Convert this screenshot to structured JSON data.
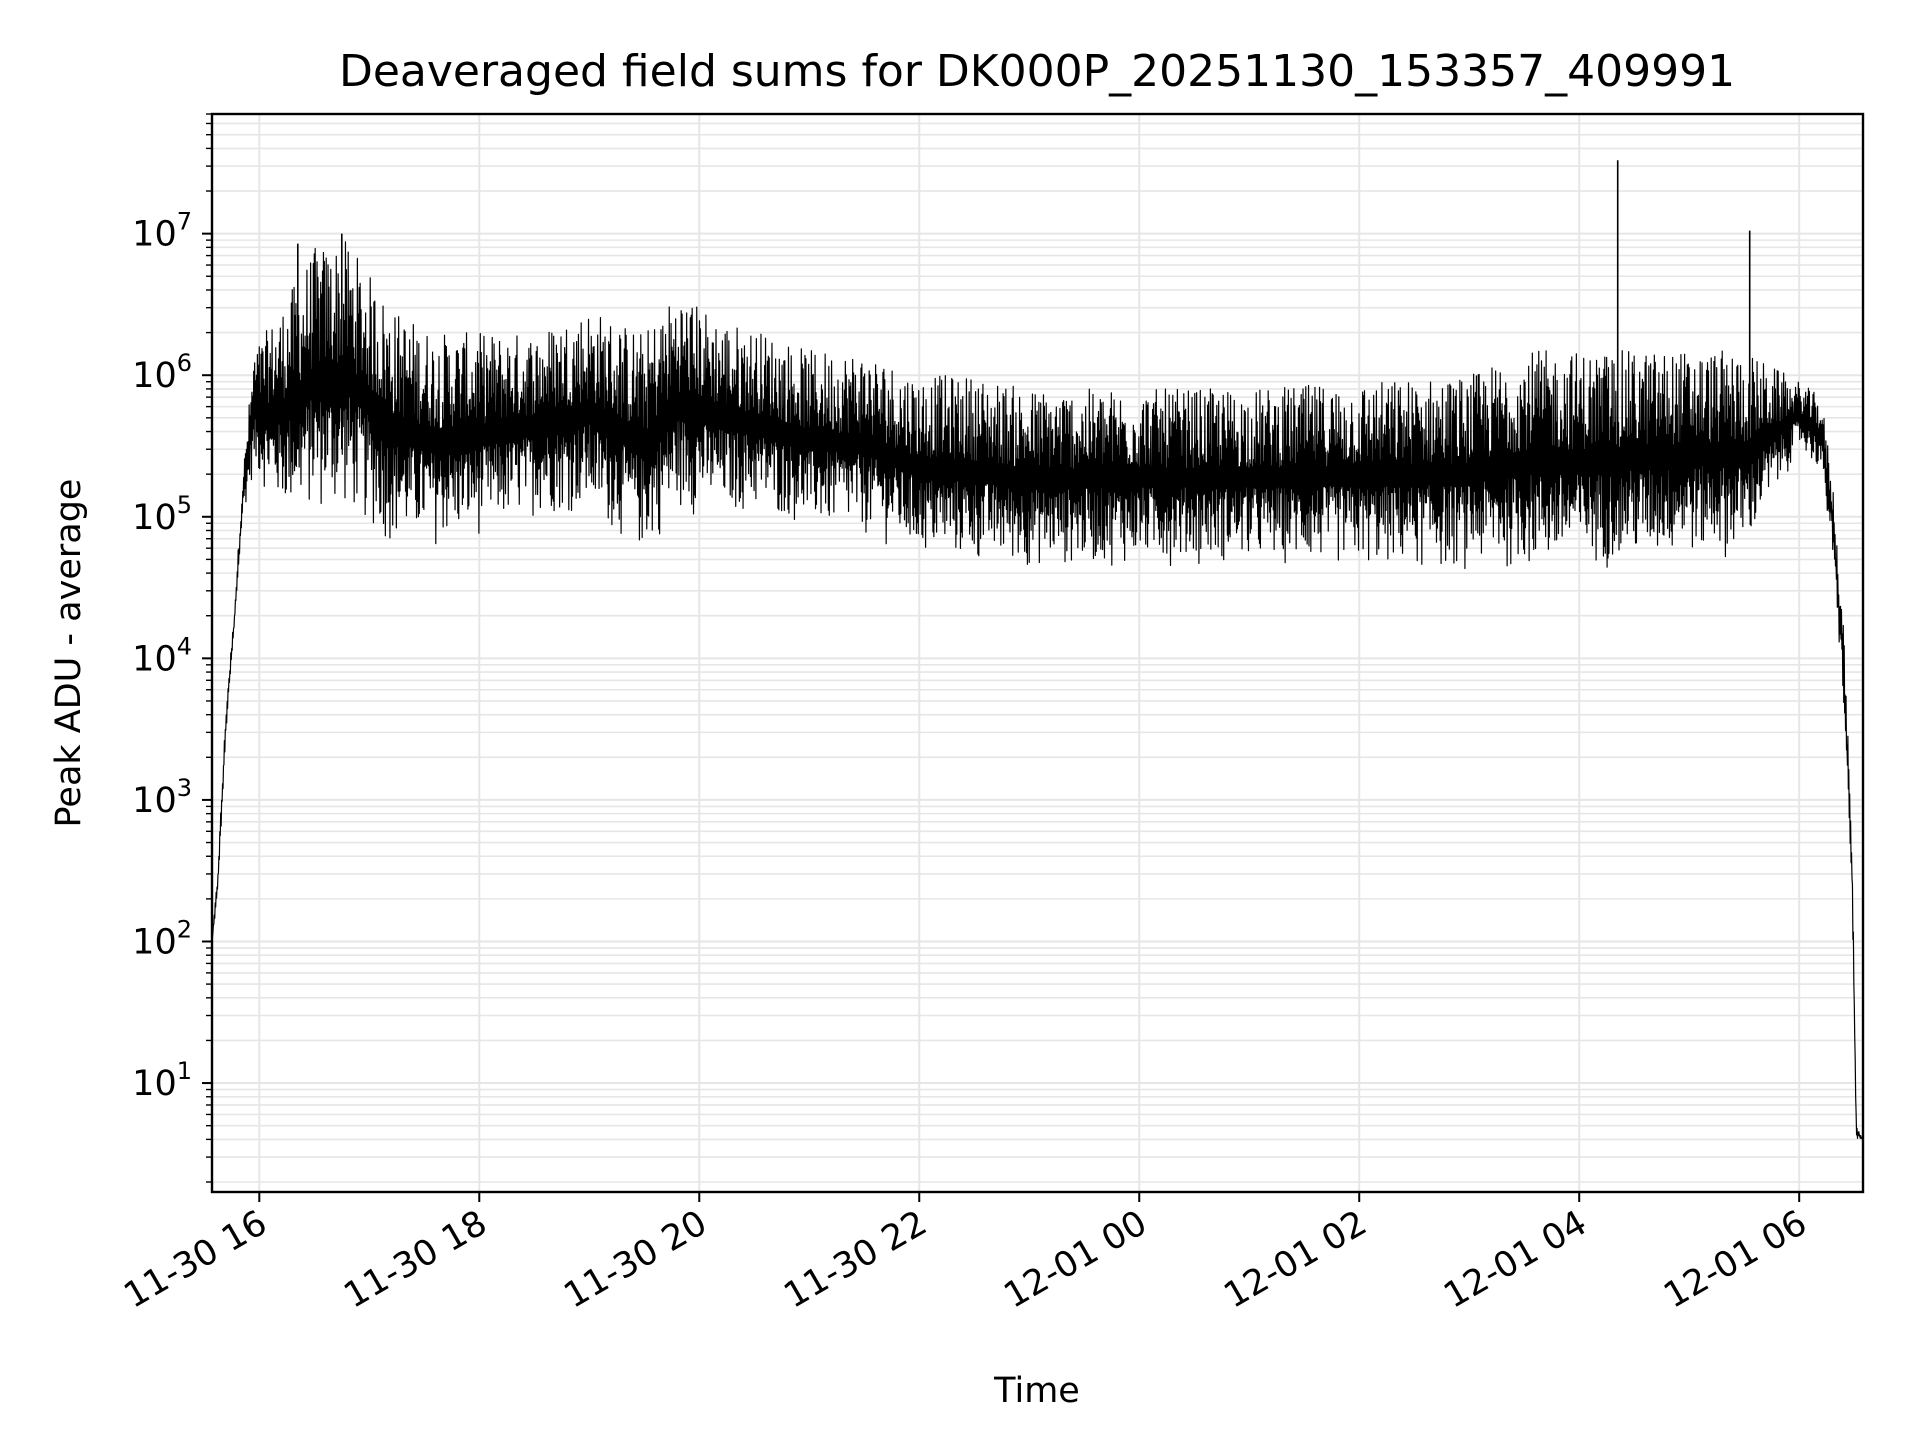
{
  "chart_data": {
    "type": "line",
    "title": "Deaveraged field sums for DK000P_20251130_153357_409991",
    "xlabel": "Time",
    "ylabel": "Peak ADU - average",
    "yscale": "log",
    "ylim": [
      1.7,
      70000000
    ],
    "xlim_hours": [
      15.57,
      30.58
    ],
    "grid": true,
    "x_ticks": [
      {
        "hour": 16,
        "label": "11-30 16"
      },
      {
        "hour": 18,
        "label": "11-30 18"
      },
      {
        "hour": 20,
        "label": "11-30 20"
      },
      {
        "hour": 22,
        "label": "11-30 22"
      },
      {
        "hour": 24,
        "label": "12-01 00"
      },
      {
        "hour": 26,
        "label": "12-01 02"
      },
      {
        "hour": 28,
        "label": "12-01 04"
      },
      {
        "hour": 30,
        "label": "12-01 06"
      }
    ],
    "y_ticks": [
      {
        "exp": 1,
        "base": "10",
        "power": "1"
      },
      {
        "exp": 2,
        "base": "10",
        "power": "2"
      },
      {
        "exp": 3,
        "base": "10",
        "power": "3"
      },
      {
        "exp": 4,
        "base": "10",
        "power": "4"
      },
      {
        "exp": 5,
        "base": "10",
        "power": "5"
      },
      {
        "exp": 6,
        "base": "10",
        "power": "6"
      },
      {
        "exp": 7,
        "base": "10",
        "power": "7"
      }
    ],
    "series": [
      {
        "name": "peak_adu_minus_average",
        "color": "#000000",
        "envelope": [
          {
            "t": 15.57,
            "lo": 100,
            "hi": 100
          },
          {
            "t": 15.62,
            "lo": 200,
            "hi": 300
          },
          {
            "t": 15.7,
            "lo": 3000,
            "hi": 5000
          },
          {
            "t": 15.77,
            "lo": 15000,
            "hi": 20000
          },
          {
            "t": 15.85,
            "lo": 100000,
            "hi": 200000
          },
          {
            "t": 15.95,
            "lo": 200000,
            "hi": 1500000
          },
          {
            "t": 16.2,
            "lo": 100000,
            "hi": 3000000
          },
          {
            "t": 16.5,
            "lo": 100000,
            "hi": 8000000
          },
          {
            "t": 16.8,
            "lo": 100000,
            "hi": 9000000
          },
          {
            "t": 17.2,
            "lo": 60000,
            "hi": 3000000
          },
          {
            "t": 17.6,
            "lo": 60000,
            "hi": 2000000
          },
          {
            "t": 18.0,
            "lo": 70000,
            "hi": 2000000
          },
          {
            "t": 18.5,
            "lo": 100000,
            "hi": 2000000
          },
          {
            "t": 19.0,
            "lo": 100000,
            "hi": 3000000
          },
          {
            "t": 19.5,
            "lo": 50000,
            "hi": 2000000
          },
          {
            "t": 19.8,
            "lo": 100000,
            "hi": 4000000
          },
          {
            "t": 20.2,
            "lo": 100000,
            "hi": 2500000
          },
          {
            "t": 20.6,
            "lo": 100000,
            "hi": 2000000
          },
          {
            "t": 21.0,
            "lo": 80000,
            "hi": 1500000
          },
          {
            "t": 21.5,
            "lo": 70000,
            "hi": 1500000
          },
          {
            "t": 22.0,
            "lo": 50000,
            "hi": 1000000
          },
          {
            "t": 22.5,
            "lo": 45000,
            "hi": 1000000
          },
          {
            "t": 23.0,
            "lo": 42000,
            "hi": 800000
          },
          {
            "t": 24.0,
            "lo": 45000,
            "hi": 800000
          },
          {
            "t": 25.0,
            "lo": 45000,
            "hi": 800000
          },
          {
            "t": 26.0,
            "lo": 42000,
            "hi": 900000
          },
          {
            "t": 27.0,
            "lo": 40000,
            "hi": 1000000
          },
          {
            "t": 27.5,
            "lo": 40000,
            "hi": 1500000
          },
          {
            "t": 28.0,
            "lo": 40000,
            "hi": 1500000
          },
          {
            "t": 28.5,
            "lo": 45000,
            "hi": 1500000
          },
          {
            "t": 29.0,
            "lo": 50000,
            "hi": 1500000
          },
          {
            "t": 29.5,
            "lo": 50000,
            "hi": 1500000
          },
          {
            "t": 30.0,
            "lo": 300000,
            "hi": 900000
          },
          {
            "t": 30.2,
            "lo": 200000,
            "hi": 700000
          },
          {
            "t": 30.3,
            "lo": 50000,
            "hi": 200000
          },
          {
            "t": 30.4,
            "lo": 5000,
            "hi": 20000
          },
          {
            "t": 30.48,
            "lo": 200,
            "hi": 500
          },
          {
            "t": 30.52,
            "lo": 4,
            "hi": 5
          },
          {
            "t": 30.58,
            "lo": 4,
            "hi": 4
          }
        ],
        "spikes": [
          {
            "t": 28.35,
            "value": 33000000
          },
          {
            "t": 29.55,
            "value": 10500000
          },
          {
            "t": 16.75,
            "value": 10000000
          },
          {
            "t": 16.35,
            "value": 8500000
          }
        ]
      }
    ]
  }
}
